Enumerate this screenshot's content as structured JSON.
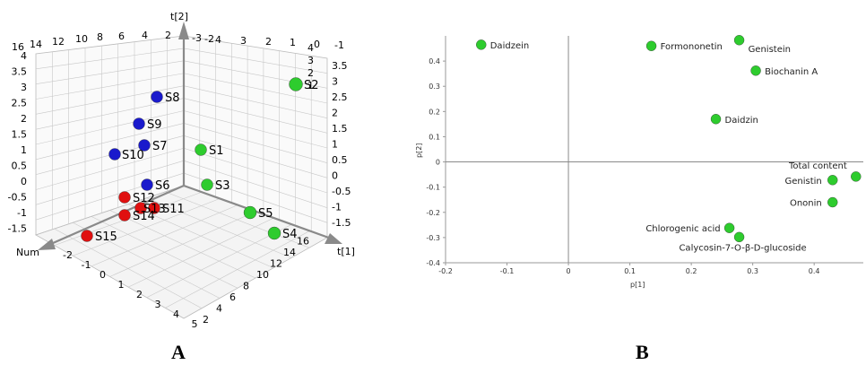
{
  "chart_data": [
    {
      "panel": "A",
      "type": "scatter",
      "dimensions": 3,
      "axes": {
        "t1": {
          "label": "t[1]",
          "ticks": [
            16,
            14,
            12,
            10,
            8,
            6,
            4,
            2,
            0,
            -2
          ]
        },
        "t2": {
          "label": "t[2]",
          "ticks_left": [
            4,
            3.5,
            3,
            2.5,
            2,
            1.5,
            1,
            0.5,
            0,
            -0.5,
            -1,
            -1.5
          ],
          "ticks_right": [
            3.5,
            3,
            2.5,
            2,
            1.5,
            1,
            0.5,
            0,
            -0.5,
            -1,
            -1.5
          ]
        },
        "t3": {
          "label": "Num",
          "ticks": [
            -2,
            -1,
            0,
            1,
            2,
            3,
            4,
            5
          ],
          "ticks_far": [
            16,
            14,
            12,
            10,
            8,
            6,
            4,
            2
          ]
        },
        "back_top_ticks": [
          16,
          14,
          12,
          10,
          8,
          6,
          4,
          2,
          4,
          3,
          2,
          1,
          0,
          -1,
          -2,
          -3
        ],
        "right_ticks": [
          4,
          3,
          2,
          1
        ]
      },
      "grid": true,
      "series": [
        {
          "color": "#2ecc2e",
          "points": [
            {
              "label": "S1"
            },
            {
              "label": "S2"
            },
            {
              "label": "S3"
            },
            {
              "label": "S4"
            },
            {
              "label": "S5"
            }
          ]
        },
        {
          "color": "#1a1acc",
          "points": [
            {
              "label": "S6"
            },
            {
              "label": "S7"
            },
            {
              "label": "S8"
            },
            {
              "label": "S9"
            },
            {
              "label": "S10"
            }
          ]
        },
        {
          "color": "#e01010",
          "points": [
            {
              "label": "S11"
            },
            {
              "label": "S12"
            },
            {
              "label": "S13"
            },
            {
              "label": "S14"
            },
            {
              "label": "S15"
            }
          ]
        }
      ]
    },
    {
      "panel": "B",
      "type": "scatter",
      "xlabel": "p[1]",
      "ylabel": "p[2]",
      "xlim": [
        -0.2,
        0.48
      ],
      "ylim": [
        -0.4,
        0.5
      ],
      "xticks": [
        -0.2,
        -0.1,
        0,
        0.1,
        0.2,
        0.3,
        0.4
      ],
      "yticks": [
        0.4,
        0.3,
        0.2,
        0.1,
        0,
        -0.1,
        -0.2,
        -0.3,
        -0.4
      ],
      "grid": false,
      "marker_color": "#2ecc2e",
      "points": [
        {
          "label": "Daidzein",
          "x": -0.142,
          "y": 0.465
        },
        {
          "label": "Formononetin",
          "x": 0.135,
          "y": 0.46
        },
        {
          "label": "Genistein",
          "x": 0.278,
          "y": 0.483
        },
        {
          "label": "Biochanin A",
          "x": 0.305,
          "y": 0.362
        },
        {
          "label": "Daidzin",
          "x": 0.24,
          "y": 0.17
        },
        {
          "label": "Total content",
          "x": 0.468,
          "y": -0.058
        },
        {
          "label": "Genistin",
          "x": 0.43,
          "y": -0.072
        },
        {
          "label": "Ononin",
          "x": 0.43,
          "y": -0.16
        },
        {
          "label": "Chlorogenic acid",
          "x": 0.262,
          "y": -0.262
        },
        {
          "label": "Calycosin-7-O-β-D-glucoside",
          "x": 0.278,
          "y": -0.298
        }
      ]
    }
  ]
}
